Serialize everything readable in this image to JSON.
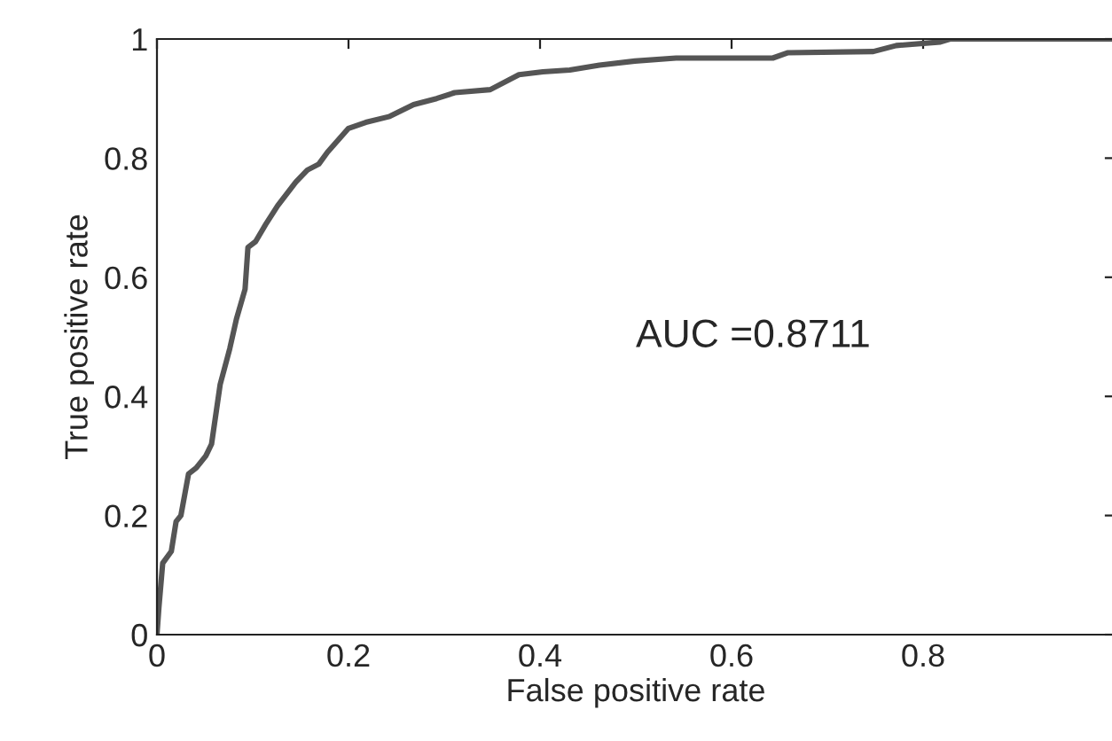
{
  "chart_data": {
    "type": "line",
    "xlabel": "False positive rate",
    "ylabel": "True positive rate",
    "annotations": [
      "AUC =0.8711"
    ],
    "xlim": [
      0,
      1
    ],
    "ylim": [
      0,
      1
    ],
    "xticks": [
      0,
      0.2,
      0.4,
      0.6,
      0.8,
      {
        "value": 1,
        "label": null
      }
    ],
    "yticks": [
      0,
      0.2,
      0.4,
      0.6,
      0.8,
      1
    ],
    "grid": false,
    "series": [
      {
        "color": "#555555",
        "x": [
          0,
          0.002,
          0.006,
          0.015,
          0.02,
          0.025,
          0.033,
          0.041,
          0.051,
          0.057,
          0.066,
          0.076,
          0.083,
          0.092,
          0.095,
          0.103,
          0.114,
          0.126,
          0.145,
          0.157,
          0.169,
          0.178,
          0.2,
          0.218,
          0.243,
          0.268,
          0.292,
          0.311,
          0.348,
          0.378,
          0.403,
          0.431,
          0.462,
          0.499,
          0.542,
          0.643,
          0.659,
          0.748,
          0.772,
          0.818,
          0.828,
          1.0
        ],
        "values": [
          0,
          0.045,
          0.12,
          0.14,
          0.19,
          0.2,
          0.27,
          0.28,
          0.3,
          0.32,
          0.42,
          0.48,
          0.53,
          0.58,
          0.65,
          0.66,
          0.69,
          0.72,
          0.76,
          0.78,
          0.79,
          0.81,
          0.85,
          0.86,
          0.87,
          0.89,
          0.9,
          0.91,
          0.915,
          0.94,
          0.945,
          0.948,
          0.956,
          0.963,
          0.968,
          0.968,
          0.977,
          0.979,
          0.989,
          0.995,
          1.0,
          1.0
        ]
      }
    ]
  }
}
